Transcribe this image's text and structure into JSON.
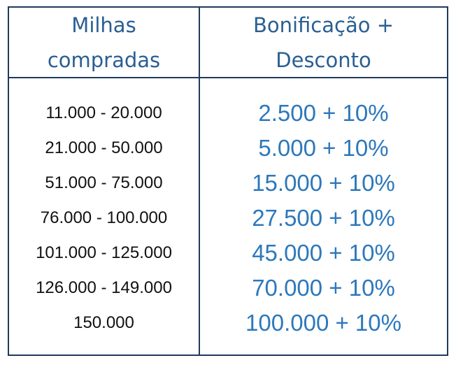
{
  "colors": {
    "border": "#1f3a5c",
    "header_text": "#2a5f92",
    "range_text": "#111111",
    "bonus_text": "#2d78bb"
  },
  "header": {
    "col1_line1": "Milhas",
    "col1_line2": "compradas",
    "col2_line1": "Bonificação +",
    "col2_line2": "Desconto"
  },
  "rows": [
    {
      "range": "11.000 - 20.000",
      "bonus": "2.500 + 10%"
    },
    {
      "range": "21.000 - 50.000",
      "bonus": "5.000 + 10%"
    },
    {
      "range": "51.000 - 75.000",
      "bonus": "15.000 + 10%"
    },
    {
      "range": "76.000 - 100.000",
      "bonus": "27.500 + 10%"
    },
    {
      "range": "101.000 - 125.000",
      "bonus": "45.000 + 10%"
    },
    {
      "range": "126.000 - 149.000",
      "bonus": "70.000 + 10%"
    },
    {
      "range": "150.000",
      "bonus": "100.000 + 10%"
    }
  ]
}
